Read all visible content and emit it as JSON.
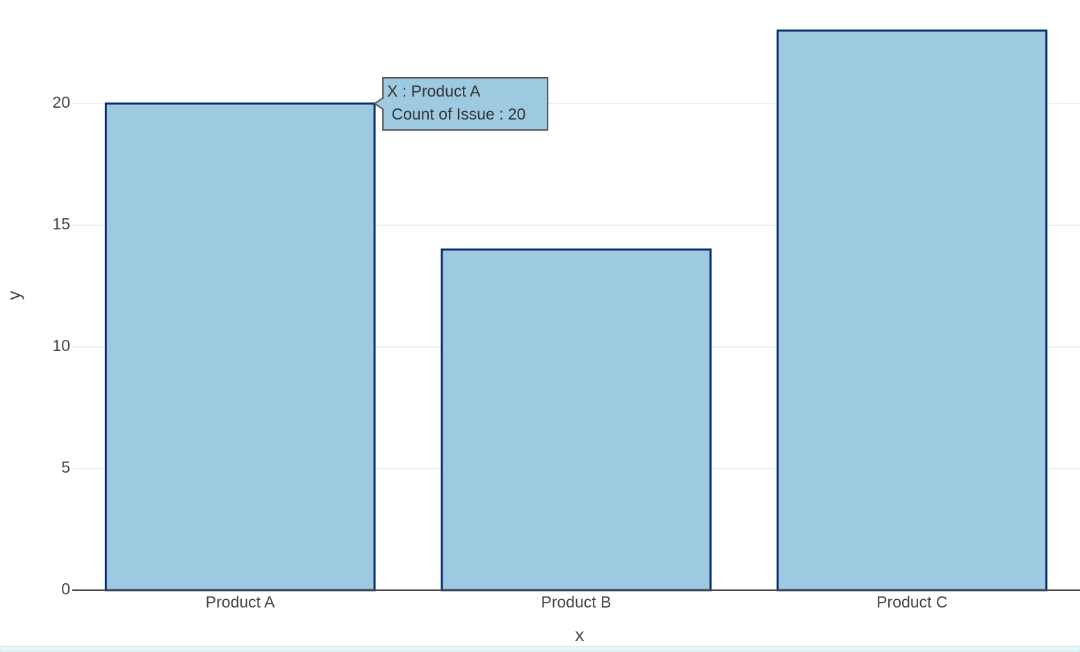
{
  "chart_data": {
    "type": "bar",
    "x_label": "x",
    "y_label": "y",
    "categories": [
      "Product A",
      "Product B",
      "Product C"
    ],
    "values": [
      20,
      14,
      23
    ],
    "color": "#9ecae1",
    "edge_color": "#0b2f6b",
    "ylim": [
      0,
      24
    ],
    "yticks": [
      0,
      5,
      10,
      15,
      20
    ],
    "grid": true,
    "tooltip": {
      "lines": [
        "X : Product A",
        " Count of Issue : 20"
      ]
    }
  }
}
